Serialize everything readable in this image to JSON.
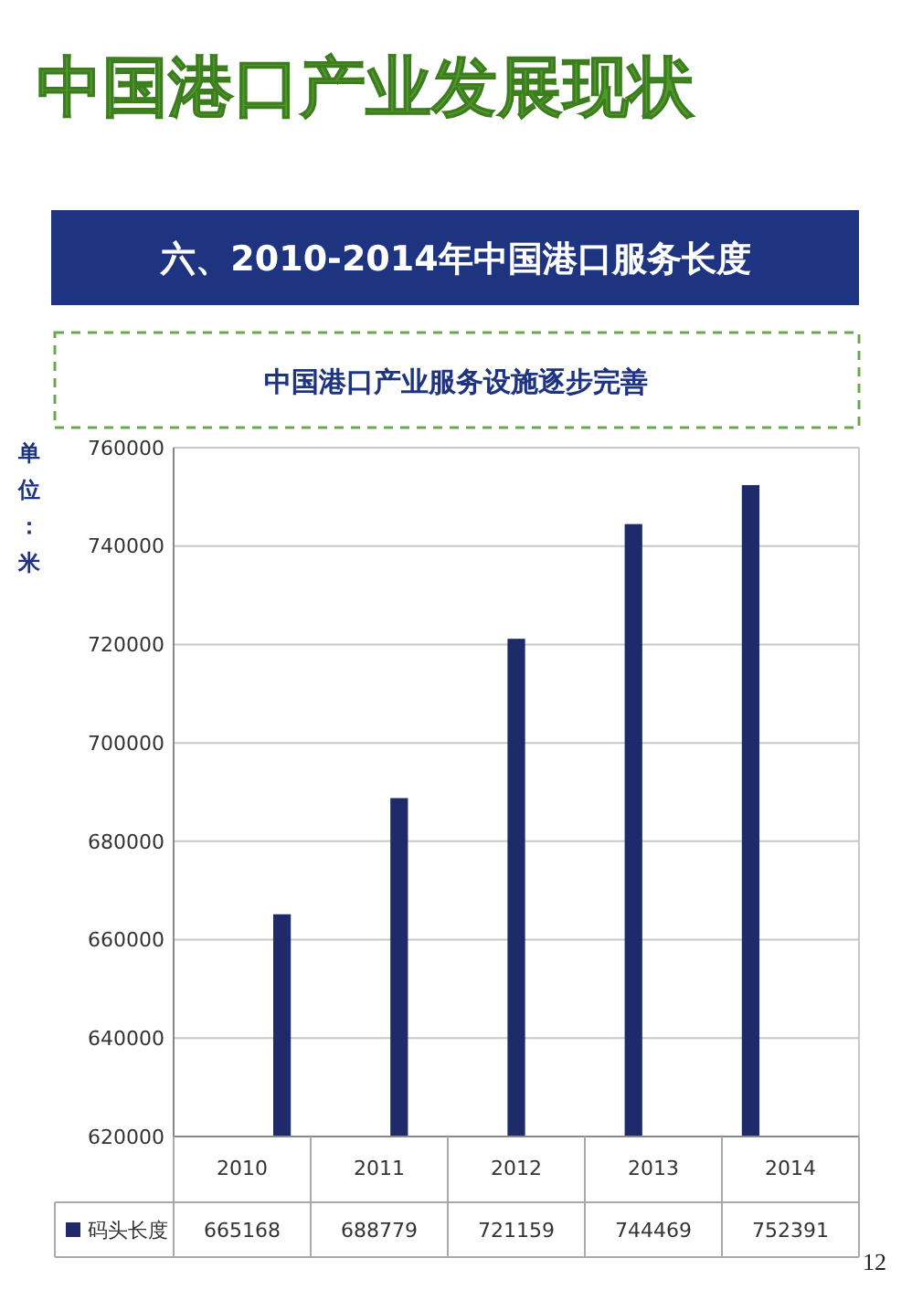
{
  "chart_data": {
    "type": "bar",
    "title": "中国港口产业发展现状",
    "subtitle": "六、2010-2014年中国港口服务长度",
    "annotations": [
      "中国港口产业服务设施逐步完善",
      "12"
    ],
    "ylabel": "单位：米",
    "categories": [
      "2010",
      "2011",
      "2012",
      "2013",
      "2014"
    ],
    "series": [
      {
        "name": "码头长度",
        "color": "#1f2a6b",
        "values": [
          665168,
          688779,
          721159,
          744469,
          752391
        ]
      }
    ],
    "ylim": [
      620000,
      760000
    ],
    "yticks": [
      620000,
      640000,
      660000,
      680000,
      700000,
      720000,
      740000,
      760000
    ],
    "grid": "y",
    "legend": "bottom",
    "data_labels": true
  }
}
